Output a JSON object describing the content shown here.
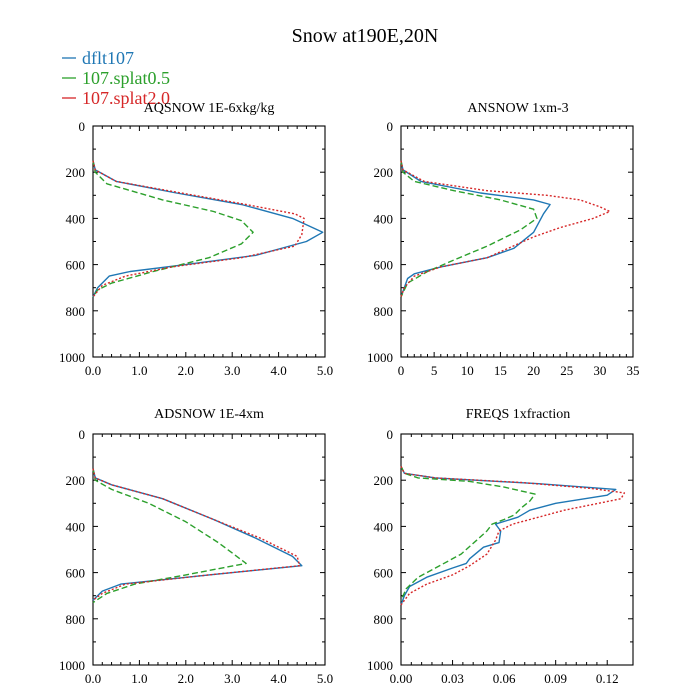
{
  "figure": {
    "title": "Snow at190E,20N"
  },
  "legend": [
    {
      "label": "dflt107",
      "color": "#1f77b4",
      "dash": "solid"
    },
    {
      "label": "107.splat0.5",
      "color": "#2ca02c",
      "dash": "dashed"
    },
    {
      "label": "107.splat2.0",
      "color": "#d62728",
      "dash": "dotted"
    }
  ],
  "chart_data": [
    {
      "type": "line",
      "title": "AQSNOW  1E-6xkg/kg",
      "xlim": [
        0,
        5
      ],
      "ylim": [
        1000,
        0
      ],
      "xticks": [
        0,
        1,
        2,
        3,
        4,
        5
      ],
      "xtick_labels": [
        "0.0",
        "1.0",
        "2.0",
        "3.0",
        "4.0",
        "5.0"
      ],
      "yticks": [
        0,
        200,
        400,
        600,
        800,
        1000
      ],
      "ytick_labels": [
        "0",
        "200",
        "400",
        "600",
        "800",
        "1000"
      ],
      "series": [
        {
          "name": "dflt107",
          "points": [
            [
              0,
              150
            ],
            [
              0.05,
              190
            ],
            [
              0.5,
              240
            ],
            [
              1.8,
              290
            ],
            [
              3.2,
              340
            ],
            [
              4.3,
              400
            ],
            [
              4.95,
              460
            ],
            [
              4.6,
              500
            ],
            [
              3.5,
              560
            ],
            [
              2.0,
              600
            ],
            [
              0.8,
              630
            ],
            [
              0.35,
              650
            ],
            [
              0.1,
              700
            ],
            [
              0,
              740
            ]
          ]
        },
        {
          "name": "107.splat0.5",
          "points": [
            [
              0,
              150
            ],
            [
              0.05,
              200
            ],
            [
              0.3,
              250
            ],
            [
              1.5,
              320
            ],
            [
              2.6,
              370
            ],
            [
              3.2,
              410
            ],
            [
              3.45,
              460
            ],
            [
              3.2,
              510
            ],
            [
              2.5,
              570
            ],
            [
              1.3,
              630
            ],
            [
              0.4,
              680
            ],
            [
              0.1,
              710
            ],
            [
              0,
              740
            ]
          ]
        },
        {
          "name": "107.splat2.0",
          "points": [
            [
              0,
              150
            ],
            [
              0.05,
              190
            ],
            [
              0.5,
              240
            ],
            [
              1.9,
              290
            ],
            [
              3.3,
              340
            ],
            [
              4.35,
              380
            ],
            [
              4.55,
              400
            ],
            [
              4.5,
              470
            ],
            [
              4.35,
              520
            ],
            [
              3.2,
              570
            ],
            [
              1.7,
              610
            ],
            [
              0.7,
              650
            ],
            [
              0.2,
              690
            ],
            [
              0,
              740
            ]
          ]
        }
      ]
    },
    {
      "type": "line",
      "title": "ANSNOW  1xm-3",
      "xlim": [
        0,
        35
      ],
      "ylim": [
        1000,
        0
      ],
      "xticks": [
        0,
        5,
        10,
        15,
        20,
        25,
        30,
        35
      ],
      "xtick_labels": [
        "0",
        "5",
        "10",
        "15",
        "20",
        "25",
        "30",
        "35"
      ],
      "yticks": [
        0,
        200,
        400,
        600,
        800,
        1000
      ],
      "ytick_labels": [
        "0",
        "200",
        "400",
        "600",
        "800",
        "1000"
      ],
      "series": [
        {
          "name": "dflt107",
          "points": [
            [
              0,
              150
            ],
            [
              0.3,
              190
            ],
            [
              3,
              240
            ],
            [
              12,
              290
            ],
            [
              20,
              320
            ],
            [
              22.5,
              340
            ],
            [
              21.5,
              380
            ],
            [
              20,
              460
            ],
            [
              17,
              530
            ],
            [
              13,
              570
            ],
            [
              6,
              610
            ],
            [
              2,
              640
            ],
            [
              1,
              660
            ],
            [
              0.5,
              700
            ],
            [
              0,
              740
            ]
          ]
        },
        {
          "name": "107.splat0.5",
          "points": [
            [
              0,
              150
            ],
            [
              0.3,
              200
            ],
            [
              2,
              240
            ],
            [
              8,
              280
            ],
            [
              15,
              320
            ],
            [
              20,
              360
            ],
            [
              20.5,
              400
            ],
            [
              18,
              450
            ],
            [
              13,
              520
            ],
            [
              8,
              580
            ],
            [
              4,
              630
            ],
            [
              1,
              680
            ],
            [
              0,
              740
            ]
          ]
        },
        {
          "name": "107.splat2.0",
          "points": [
            [
              0,
              150
            ],
            [
              0.3,
              190
            ],
            [
              3.5,
              240
            ],
            [
              13,
              280
            ],
            [
              22,
              300
            ],
            [
              27,
              320
            ],
            [
              30,
              350
            ],
            [
              31.5,
              370
            ],
            [
              29,
              400
            ],
            [
              24,
              440
            ],
            [
              20,
              480
            ],
            [
              13,
              570
            ],
            [
              6,
              610
            ],
            [
              2,
              650
            ],
            [
              0.5,
              700
            ],
            [
              0,
              740
            ]
          ]
        }
      ]
    },
    {
      "type": "line",
      "title": "ADSNOW  1E-4xm",
      "xlim": [
        0,
        5
      ],
      "ylim": [
        1000,
        0
      ],
      "xticks": [
        0,
        1,
        2,
        3,
        4,
        5
      ],
      "xtick_labels": [
        "0.0",
        "1.0",
        "2.0",
        "3.0",
        "4.0",
        "5.0"
      ],
      "yticks": [
        0,
        200,
        400,
        600,
        800,
        1000
      ],
      "ytick_labels": [
        "0",
        "200",
        "400",
        "600",
        "800",
        "1000"
      ],
      "series": [
        {
          "name": "dflt107",
          "points": [
            [
              0,
              150
            ],
            [
              0.05,
              190
            ],
            [
              0.4,
              220
            ],
            [
              1.5,
              280
            ],
            [
              2.6,
              370
            ],
            [
              3.5,
              450
            ],
            [
              4.3,
              530
            ],
            [
              4.5,
              570
            ],
            [
              2.5,
              610
            ],
            [
              0.6,
              650
            ],
            [
              0.2,
              680
            ],
            [
              0,
              720
            ]
          ]
        },
        {
          "name": "107.splat0.5",
          "points": [
            [
              0,
              150
            ],
            [
              0.05,
              200
            ],
            [
              0.4,
              240
            ],
            [
              1.2,
              300
            ],
            [
              2.0,
              380
            ],
            [
              2.7,
              470
            ],
            [
              3.1,
              530
            ],
            [
              3.3,
              560
            ],
            [
              2.0,
              610
            ],
            [
              0.9,
              650
            ],
            [
              0.3,
              690
            ],
            [
              0,
              730
            ]
          ]
        },
        {
          "name": "107.splat2.0",
          "points": [
            [
              0,
              150
            ],
            [
              0.05,
              190
            ],
            [
              0.4,
              220
            ],
            [
              1.5,
              280
            ],
            [
              2.6,
              370
            ],
            [
              3.6,
              450
            ],
            [
              4.4,
              530
            ],
            [
              4.45,
              570
            ],
            [
              2.5,
              610
            ],
            [
              0.7,
              650
            ],
            [
              0.2,
              690
            ],
            [
              0,
              720
            ]
          ]
        }
      ]
    },
    {
      "type": "line",
      "title": "FREQS  1xfraction",
      "xlim": [
        0,
        0.135
      ],
      "ylim": [
        1000,
        0
      ],
      "xticks": [
        0,
        0.03,
        0.06,
        0.09,
        0.12
      ],
      "xtick_labels": [
        "0.00",
        "0.03",
        "0.06",
        "0.09",
        "0.12"
      ],
      "yticks": [
        0,
        200,
        400,
        600,
        800,
        1000
      ],
      "ytick_labels": [
        "0",
        "200",
        "400",
        "600",
        "800",
        "1000"
      ],
      "series": [
        {
          "name": "dflt107",
          "points": [
            [
              0,
              140
            ],
            [
              0.002,
              170
            ],
            [
              0.02,
              190
            ],
            [
              0.08,
              215
            ],
            [
              0.125,
              240
            ],
            [
              0.12,
              265
            ],
            [
              0.09,
              300
            ],
            [
              0.075,
              330
            ],
            [
              0.068,
              360
            ],
            [
              0.055,
              390
            ],
            [
              0.058,
              420
            ],
            [
              0.057,
              470
            ],
            [
              0.048,
              490
            ],
            [
              0.04,
              540
            ],
            [
              0.038,
              560
            ],
            [
              0.03,
              580
            ],
            [
              0.015,
              620
            ],
            [
              0.005,
              660
            ],
            [
              0.002,
              700
            ],
            [
              0,
              740
            ]
          ]
        },
        {
          "name": "107.splat0.5",
          "points": [
            [
              0,
              140
            ],
            [
              0.002,
              170
            ],
            [
              0.01,
              190
            ],
            [
              0.04,
              205
            ],
            [
              0.06,
              230
            ],
            [
              0.078,
              260
            ],
            [
              0.075,
              290
            ],
            [
              0.07,
              320
            ],
            [
              0.066,
              350
            ],
            [
              0.06,
              370
            ],
            [
              0.053,
              390
            ],
            [
              0.05,
              420
            ],
            [
              0.044,
              460
            ],
            [
              0.035,
              520
            ],
            [
              0.02,
              580
            ],
            [
              0.01,
              620
            ],
            [
              0.003,
              670
            ],
            [
              0,
              720
            ]
          ]
        },
        {
          "name": "107.splat2.0",
          "points": [
            [
              0,
              140
            ],
            [
              0.002,
              170
            ],
            [
              0.02,
              190
            ],
            [
              0.07,
              210
            ],
            [
              0.11,
              235
            ],
            [
              0.13,
              255
            ],
            [
              0.128,
              280
            ],
            [
              0.115,
              300
            ],
            [
              0.095,
              330
            ],
            [
              0.08,
              360
            ],
            [
              0.065,
              390
            ],
            [
              0.057,
              420
            ],
            [
              0.055,
              460
            ],
            [
              0.05,
              520
            ],
            [
              0.04,
              570
            ],
            [
              0.03,
              610
            ],
            [
              0.015,
              650
            ],
            [
              0.005,
              690
            ],
            [
              0,
              740
            ]
          ]
        }
      ]
    }
  ]
}
